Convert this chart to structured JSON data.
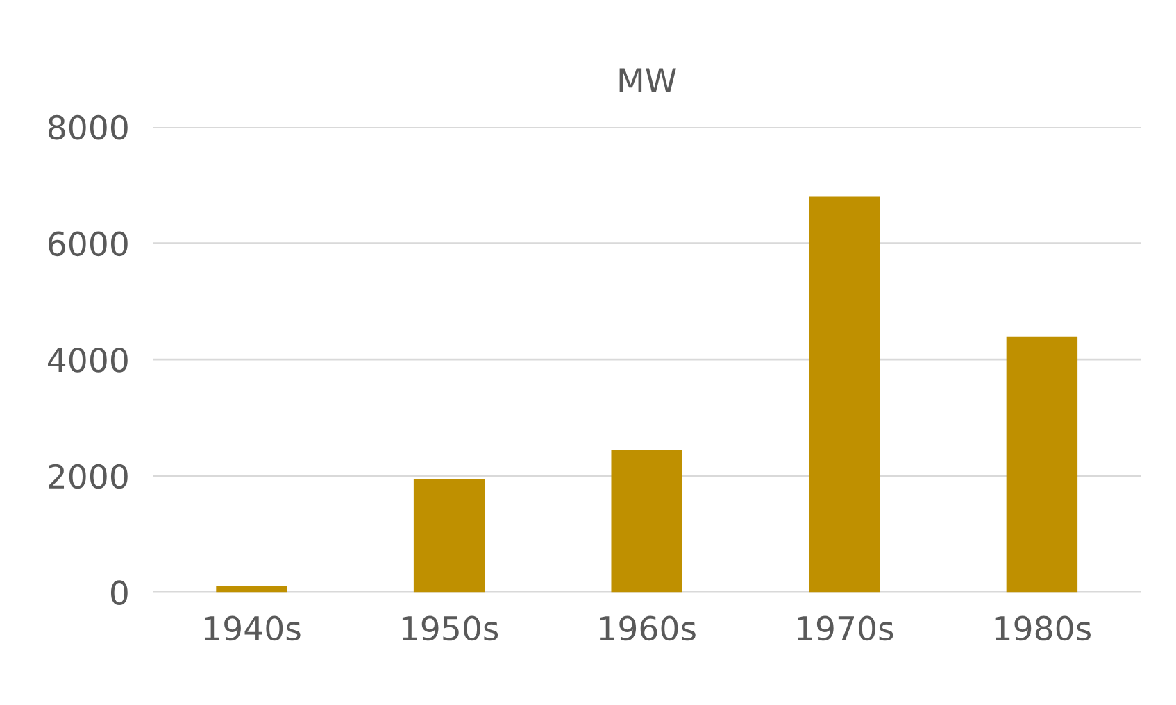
{
  "chart_data": {
    "type": "bar",
    "title": "MW",
    "categories": [
      "1940s",
      "1950s",
      "1960s",
      "1970s",
      "1980s"
    ],
    "values": [
      100,
      1950,
      2450,
      6800,
      4400
    ],
    "color": "#bf9000",
    "ylim": [
      0,
      8000
    ],
    "yticks": [
      0,
      2000,
      4000,
      6000,
      8000
    ],
    "grid": "y"
  }
}
